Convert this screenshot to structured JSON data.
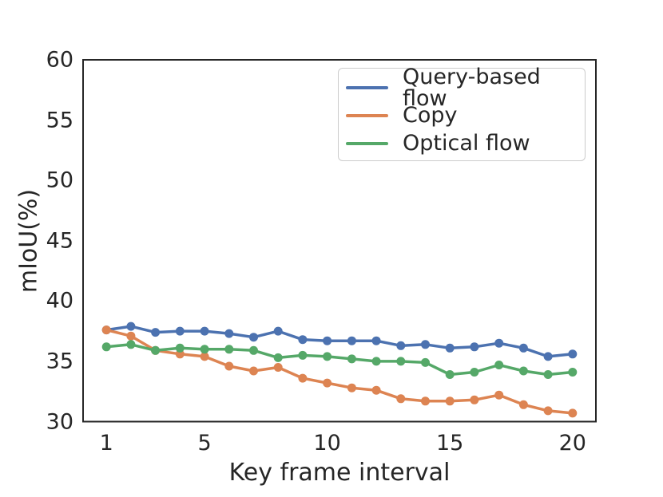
{
  "chart_data": {
    "type": "line",
    "title": "",
    "xlabel": "Key frame interval",
    "ylabel": "mIoU(%)",
    "x": [
      1,
      2,
      3,
      4,
      5,
      6,
      7,
      8,
      9,
      10,
      11,
      12,
      13,
      14,
      15,
      16,
      17,
      18,
      19,
      20
    ],
    "xticks": [
      1,
      5,
      10,
      15,
      20
    ],
    "yticks": [
      30,
      35,
      40,
      45,
      50,
      55,
      60
    ],
    "xlim": [
      0.05,
      20.95
    ],
    "ylim": [
      30,
      60
    ],
    "grid": false,
    "legend_position": "top-right",
    "marker": "circle",
    "frame_color": "#262626",
    "series": [
      {
        "name": "Query-based flow",
        "color": "#4C72B0",
        "values": [
          37.6,
          37.9,
          37.4,
          37.5,
          37.5,
          37.3,
          37.0,
          37.5,
          36.8,
          36.7,
          36.7,
          36.7,
          36.3,
          36.4,
          36.1,
          36.2,
          36.5,
          36.1,
          35.4,
          35.6
        ]
      },
      {
        "name": "Copy",
        "color": "#DD8452",
        "values": [
          37.6,
          37.1,
          35.9,
          35.6,
          35.4,
          34.6,
          34.2,
          34.5,
          33.6,
          33.2,
          32.8,
          32.6,
          31.9,
          31.7,
          31.7,
          31.8,
          32.2,
          31.4,
          30.9,
          30.7
        ]
      },
      {
        "name": "Optical flow",
        "color": "#55A868",
        "values": [
          36.2,
          36.4,
          35.9,
          36.1,
          36.0,
          36.0,
          35.9,
          35.3,
          35.5,
          35.4,
          35.2,
          35.0,
          35.0,
          34.9,
          33.9,
          34.1,
          34.7,
          34.2,
          33.9,
          34.1
        ]
      }
    ]
  }
}
